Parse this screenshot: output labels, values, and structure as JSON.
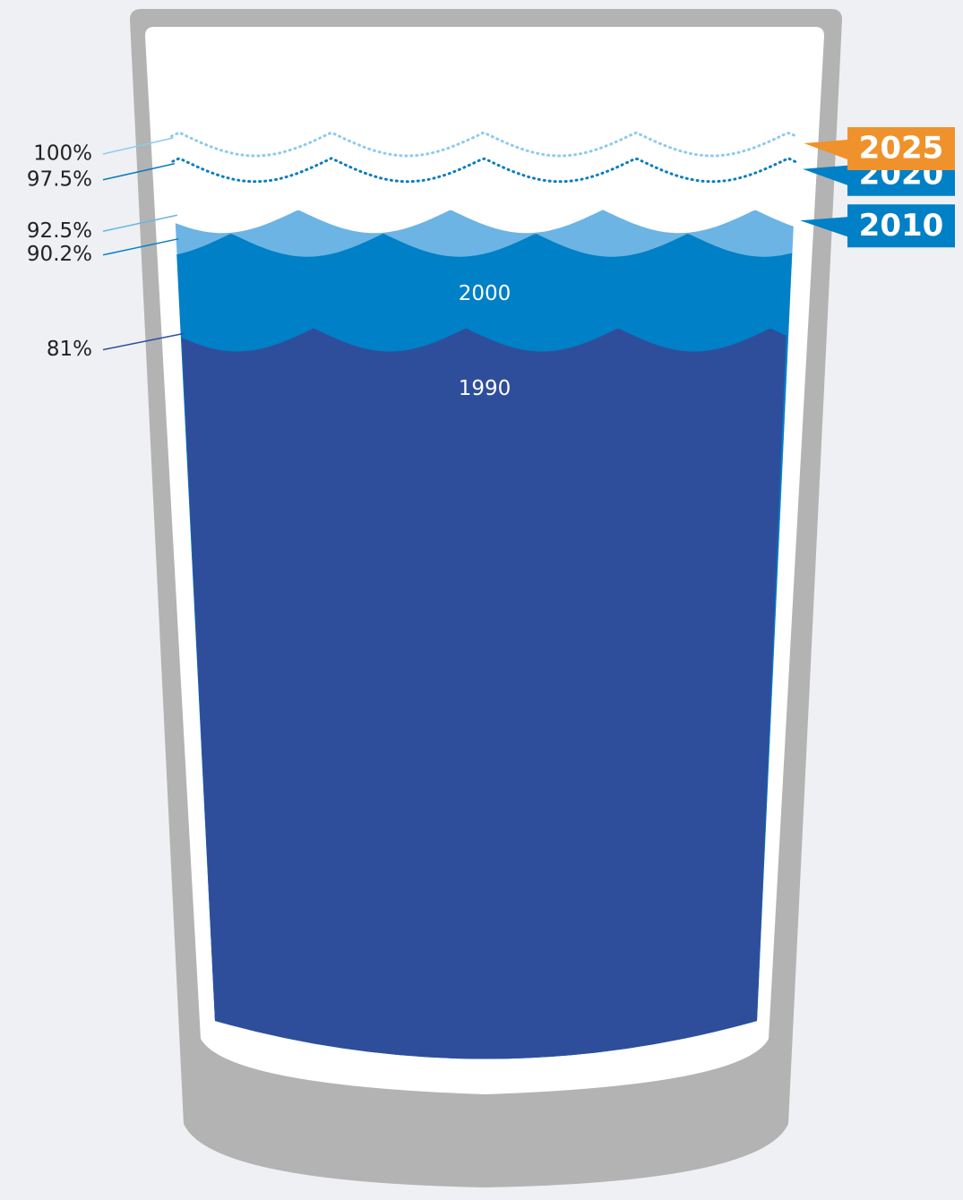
{
  "chart_data": {
    "type": "glass",
    "categories": [
      "1990",
      "2000",
      "2010",
      "2020",
      "2025"
    ],
    "values": [
      81,
      90.2,
      92.5,
      97.5,
      100
    ],
    "value_labels": [
      "81%",
      "90.2%",
      "92.5%",
      "97.5%",
      "100%"
    ],
    "colors": [
      "#2e4e9c",
      "#0080c6",
      "#6cb4e4",
      "#0a7cc0",
      "#8ccbec"
    ],
    "line_styles": [
      "solid",
      "solid",
      "solid",
      "dotted",
      "dotted"
    ],
    "label_position": [
      "inside",
      "inside",
      "tag",
      "tag",
      "tag"
    ],
    "tag_colors": [
      null,
      null,
      "#0080c6",
      "#0080c6",
      "#f0922b"
    ]
  }
}
